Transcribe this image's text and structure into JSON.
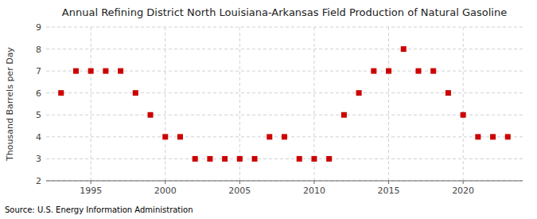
{
  "chart_data": {
    "type": "scatter",
    "title": "Annual Refining District North Louisiana-Arkansas Field Production of Natural Gasoline",
    "y_label": "Thousand Barrels per Day",
    "source": "Source: U.S. Energy Information Administration",
    "x": [
      1993,
      1994,
      1995,
      1996,
      1997,
      1998,
      1999,
      2000,
      2001,
      2002,
      2003,
      2004,
      2005,
      2006,
      2007,
      2008,
      2009,
      2010,
      2011,
      2012,
      2013,
      2014,
      2015,
      2016,
      2017,
      2018,
      2019,
      2020,
      2021,
      2022,
      2023
    ],
    "values": [
      6,
      7,
      7,
      7,
      7,
      6,
      5,
      4,
      4,
      3,
      3,
      3,
      3,
      3,
      4,
      4,
      3,
      3,
      3,
      5,
      6,
      7,
      7,
      8,
      7,
      7,
      6,
      5,
      4,
      4,
      4
    ],
    "color": "#cc0000",
    "marker": "square",
    "xlim": [
      1992,
      2024
    ],
    "ylim": [
      2,
      9
    ],
    "xticks": [
      1995,
      2000,
      2005,
      2010,
      2015,
      2020
    ],
    "yticks": [
      2,
      3,
      4,
      5,
      6,
      7,
      8,
      9
    ],
    "grid": true
  }
}
